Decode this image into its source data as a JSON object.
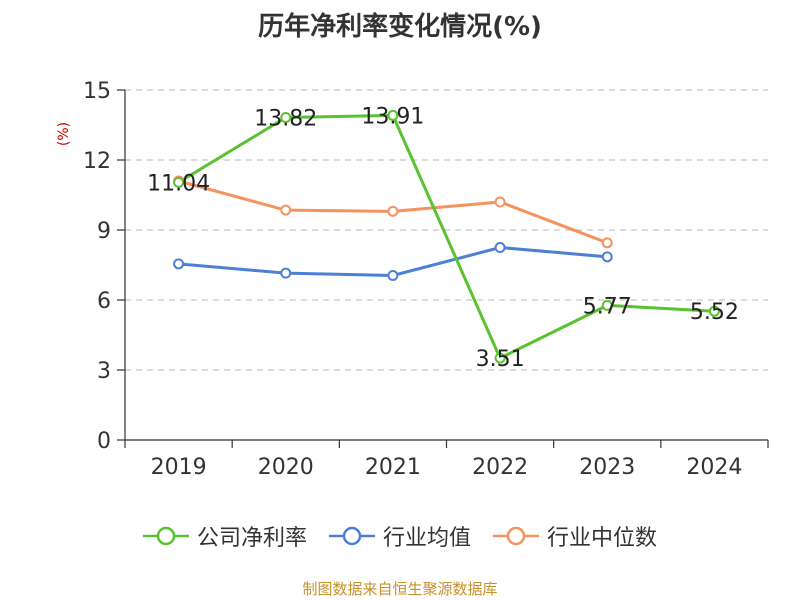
{
  "page": {
    "title": "历年净利率变化情况(%)",
    "ylabel": "(%)",
    "footer": "制图数据来自恒生聚源数据库"
  },
  "chart_data": {
    "type": "line",
    "title": "历年净利率变化情况(%)",
    "xlabel": "",
    "ylabel": "(%)",
    "categories": [
      "2019",
      "2020",
      "2021",
      "2022",
      "2023",
      "2024"
    ],
    "ylim": [
      0,
      15
    ],
    "yticks": [
      0,
      3,
      6,
      9,
      12,
      15
    ],
    "grid": true,
    "legend_position": "bottom",
    "series": [
      {
        "name": "公司净利率",
        "color": "#5ac231",
        "values": [
          11.04,
          13.82,
          13.91,
          3.51,
          5.77,
          5.52
        ],
        "labels": [
          "11.04",
          "13.82",
          "13.91",
          "3.51",
          "5.77",
          "5.52"
        ]
      },
      {
        "name": "行业均值",
        "color": "#4e7fd6",
        "values": [
          7.55,
          7.15,
          7.05,
          8.25,
          7.85,
          null
        ]
      },
      {
        "name": "行业中位数",
        "color": "#f5925e",
        "values": [
          11.1,
          9.85,
          9.8,
          10.2,
          8.45,
          null
        ]
      }
    ]
  }
}
